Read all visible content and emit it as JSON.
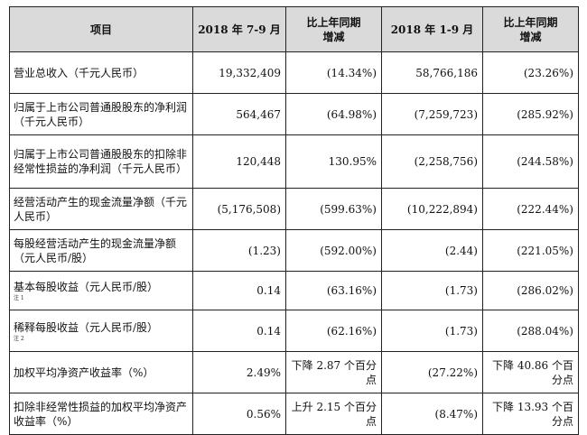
{
  "headers": [
    "项目",
    "2018 年 7-9 月",
    "比上年同期\n增减",
    "2018 年 1-9 月",
    "比上年同期\n增减"
  ],
  "rows": [
    {
      "label": "营业总收入（千元人民币）",
      "note": "",
      "c1": "19,332,409",
      "c2": "(14.34%)",
      "c3": "58,766,186",
      "c4": "(23.26%)",
      "h": "r-sm"
    },
    {
      "label": "归属于上市公司普通股股东的净利润（千元人民币）",
      "note": "",
      "c1": "564,467",
      "c2": "(64.98%)",
      "c3": "(7,259,723)",
      "c4": "(285.92%)",
      "h": "r-sm"
    },
    {
      "label": "归属于上市公司普通股股东的扣除非经常性损益的净利润（千元人民币）",
      "note": "",
      "c1": "120,448",
      "c2": "130.95%",
      "c3": "(2,258,756)",
      "c4": "(244.58%)",
      "h": "r-md"
    },
    {
      "label": "经营活动产生的现金流量净额（千元人民币）",
      "note": "",
      "c1": "(5,176,508)",
      "c2": "(599.63%)",
      "c3": "(10,222,894)",
      "c4": "(222.44%)",
      "h": "r-sm"
    },
    {
      "label": "每股经营活动产生的现金流量净额（元人民币/股）",
      "note": "",
      "c1": "(1.23)",
      "c2": "(592.00%)",
      "c3": "(2.44)",
      "c4": "(221.05%)",
      "h": "r-sm"
    },
    {
      "label": "基本每股收益（元人民币/股）",
      "note": "注 1",
      "c1": "0.14",
      "c2": "(63.16%)",
      "c3": "(1.73)",
      "c4": "(286.02%)",
      "h": "r-xs"
    },
    {
      "label": "稀释每股收益（元人民币/股）",
      "note": "注 2",
      "c1": "0.14",
      "c2": "(62.16%)",
      "c3": "(1.73)",
      "c4": "(288.04%)",
      "h": "r-sm"
    },
    {
      "label": "加权平均净资产收益率（%）",
      "note": "",
      "c1": "2.49%",
      "c2": "下降 2.87 个百分点",
      "c3": "(27.22%)",
      "c4": "下降 40.86 个百分点",
      "h": "r-sm"
    },
    {
      "label": "扣除非经常性损益的加权平均净资产收益率（%）",
      "note": "",
      "c1": "0.56%",
      "c2": "上升 2.15 个百分点",
      "c3": "(8.47%)",
      "c4": "下降 13.93 个百分点",
      "h": "r-sm"
    }
  ]
}
